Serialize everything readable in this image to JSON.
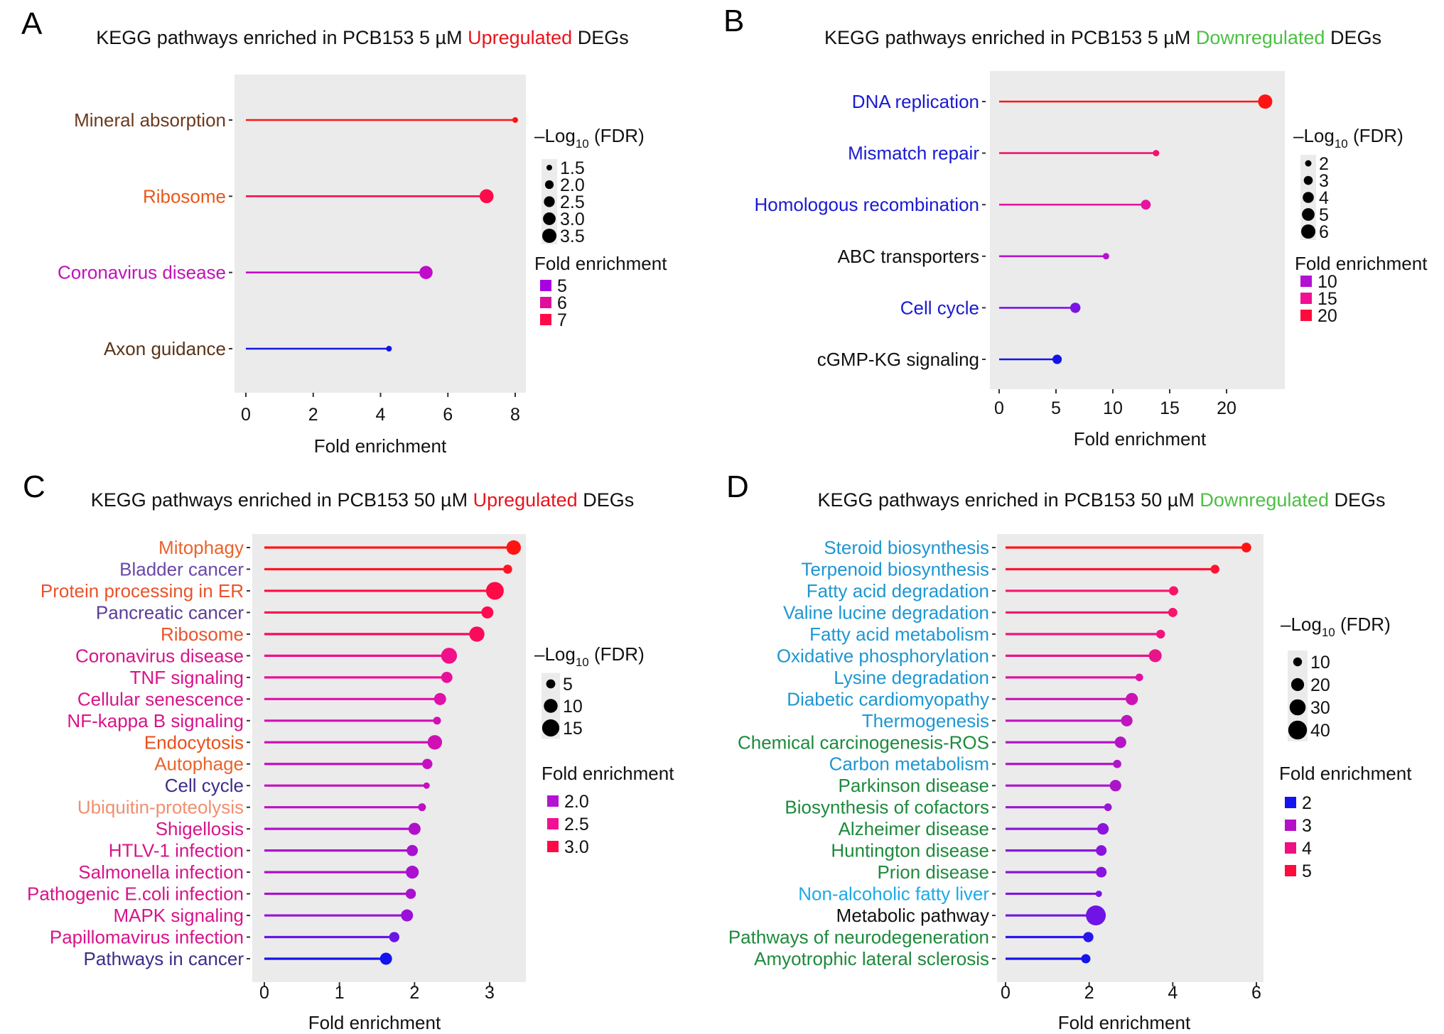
{
  "figure": {
    "panels": [
      "A",
      "B",
      "C",
      "D"
    ]
  },
  "chart_data": [
    {
      "panel": "A",
      "type": "lollipop",
      "title": {
        "prefix": "KEGG pathways enriched in PCB153 5 µM ",
        "highlight": "Upregulated",
        "highlight_color": "#e8141c",
        "suffix": " DEGs"
      },
      "xlabel": "Fold enrichment",
      "xlim": [
        0,
        8.4
      ],
      "xticks": [
        0,
        2,
        4,
        6,
        8
      ],
      "grid": false,
      "background": "#ebebeb",
      "size_legend": {
        "title": "–Log",
        "title_sub": "10",
        "title_end": " (FDR)",
        "values": [
          1.5,
          2.0,
          2.5,
          3.0,
          3.5
        ],
        "labels": [
          "1.5",
          "2.0",
          "2.5",
          "3.0",
          "3.5"
        ]
      },
      "color_legend": {
        "title": "Fold enrichment",
        "labels": [
          "5",
          "6",
          "7"
        ],
        "colors": [
          "#a800e0",
          "#e0109a",
          "#ff0a4a"
        ]
      },
      "legend_placement": "right",
      "categories": [
        "Mineral absorption",
        "Ribosome",
        "Coronavirus disease",
        "Axon guidance"
      ],
      "label_colors": [
        "#6b3a1e",
        "#e8581c",
        "#c212b8",
        "#5a3418"
      ],
      "values": [
        8.0,
        7.15,
        5.35,
        4.25
      ],
      "neg_log10_fdr": [
        1.5,
        3.4,
        3.2,
        1.3
      ],
      "point_colors": [
        "#ff1414",
        "#ff0a4a",
        "#c20bc8",
        "#1414e6"
      ]
    },
    {
      "panel": "B",
      "type": "lollipop",
      "title": {
        "prefix": "KEGG pathways enriched in PCB153 5 µM ",
        "highlight": "Downregulated",
        "highlight_color": "#4cbf44",
        "suffix": " DEGs"
      },
      "xlabel": "Fold enrichment",
      "xlim": [
        0,
        24.5
      ],
      "xticks": [
        0,
        5,
        10,
        15,
        20
      ],
      "grid": false,
      "background": "#ebebeb",
      "size_legend": {
        "title": "–Log",
        "title_sub": "10",
        "title_end": " (FDR)",
        "values": [
          2,
          3,
          4,
          5,
          6
        ],
        "labels": [
          "2",
          "3",
          "4",
          "5",
          "6"
        ]
      },
      "color_legend": {
        "title": "Fold enrichment",
        "labels": [
          "10",
          "15",
          "20"
        ],
        "colors": [
          "#b410d2",
          "#f01093",
          "#ff0a3c"
        ]
      },
      "legend_placement": "right",
      "categories": [
        "DNA replication",
        "Mismatch repair",
        "Homologous recombination",
        "ABC transporters",
        "Cell cycle",
        "cGMP-KG signaling"
      ],
      "label_colors": [
        "#1a1ad2",
        "#1a1ad2",
        "#1a1ad2",
        "#111111",
        "#1a1ad2",
        "#111111"
      ],
      "values": [
        23.4,
        13.8,
        12.9,
        9.4,
        6.7,
        5.1
      ],
      "neg_log10_fdr": [
        6.2,
        1.6,
        3.4,
        2.0,
        3.6,
        3.2
      ],
      "point_colors": [
        "#ff1414",
        "#f0146e",
        "#e614a0",
        "#b414d2",
        "#7a14e6",
        "#1414e6"
      ]
    },
    {
      "panel": "C",
      "type": "lollipop",
      "title": {
        "prefix": "KEGG pathways enriched in PCB153 50 µM ",
        "highlight": "Upregulated",
        "highlight_color": "#e8141c",
        "suffix": " DEGs"
      },
      "xlabel": "Fold enrichment",
      "xlim": [
        0,
        3.48
      ],
      "xticks": [
        0,
        1,
        2,
        3
      ],
      "grid": false,
      "background": "#ebebeb",
      "size_legend": {
        "title": "–Log",
        "title_sub": "10",
        "title_end": " (FDR)",
        "values": [
          5,
          10,
          15
        ],
        "labels": [
          "5",
          "10",
          "15"
        ]
      },
      "color_legend": {
        "title": "Fold enrichment",
        "labels": [
          "2.0",
          "2.5",
          "3.0"
        ],
        "colors": [
          "#b414d2",
          "#f01093",
          "#ff0a46"
        ]
      },
      "legend_placement": "right",
      "categories": [
        "Mitophagy",
        "Bladder cancer",
        "Protein processing in ER",
        "Pancreatic cancer",
        "Ribosome",
        "Coronavirus disease",
        "TNF signaling",
        "Cellular senescence",
        "NF-kappa B signaling",
        "Endocytosis",
        "Autophage",
        "Cell cycle",
        "Ubiquitin-proteolysis",
        "Shigellosis",
        "HTLV-1 infection",
        "Salmonella infection",
        "Pathogenic E.coli infection",
        "MAPK signaling",
        "Papillomavirus infection",
        "Pathways in cancer"
      ],
      "label_colors": [
        "#e8642c",
        "#6a48a8",
        "#e8542c",
        "#5a3e96",
        "#e8542c",
        "#d8148a",
        "#d8148a",
        "#d8148a",
        "#d8148a",
        "#e8501c",
        "#e8642c",
        "#3e2c88",
        "#f09070",
        "#d8148a",
        "#d8148a",
        "#d8148a",
        "#d8148a",
        "#d8148a",
        "#d8148a",
        "#3e2c88"
      ],
      "values": [
        3.32,
        3.24,
        3.07,
        2.97,
        2.83,
        2.46,
        2.43,
        2.34,
        2.3,
        2.27,
        2.17,
        2.16,
        2.1,
        2.0,
        1.97,
        1.97,
        1.95,
        1.9,
        1.73,
        1.62
      ],
      "neg_log10_fdr": [
        11,
        5,
        16,
        8,
        12,
        13,
        7,
        8,
        4,
        11,
        6,
        3,
        4,
        8,
        7,
        9,
        6,
        8,
        6,
        8
      ],
      "point_colors": [
        "#ff1414",
        "#ff1428",
        "#ff0a46",
        "#ff0a50",
        "#fa0a5a",
        "#f0108a",
        "#e8109a",
        "#e010a8",
        "#d010b4",
        "#d010b4",
        "#c410c0",
        "#c410c0",
        "#bc10c4",
        "#b010cc",
        "#aa10d0",
        "#aa10d0",
        "#aa10d0",
        "#9a10d8",
        "#6a14e6",
        "#1414f0"
      ]
    },
    {
      "panel": "D",
      "type": "lollipop",
      "title": {
        "prefix": "KEGG pathways enriched in PCB153 50 µM ",
        "highlight": "Downregulated",
        "highlight_color": "#4cbf44",
        "suffix": " DEGs"
      },
      "xlabel": "Fold enrichment",
      "xlim": [
        0,
        6.1
      ],
      "xticks": [
        0,
        2,
        4,
        6
      ],
      "grid": false,
      "background": "#ebebeb",
      "size_legend": {
        "title": "–Log",
        "title_sub": "10",
        "title_end": " (FDR)",
        "values": [
          10,
          20,
          30,
          40
        ],
        "labels": [
          "10",
          "20",
          "30",
          "40"
        ]
      },
      "color_legend": {
        "title": "Fold enrichment",
        "labels": [
          "2",
          "3",
          "4",
          "5"
        ],
        "colors": [
          "#1414f0",
          "#b410c8",
          "#f01080",
          "#ff0a3c"
        ]
      },
      "legend_placement": "right",
      "categories": [
        "Steroid biosynthesis",
        "Terpenoid biosynthesis",
        "Fatty acid degradation",
        "Valine lucine degradation",
        "Fatty acid metabolism",
        "Oxidative phosphorylation",
        "Lysine degradation",
        "Diabetic cardiomyopathy",
        "Thermogenesis",
        "Chemical carcinogenesis-ROS",
        "Carbon metabolism",
        "Parkinson disease",
        "Biosynthesis of cofactors",
        "Alzheimer disease",
        "Huntington disease",
        "Prion disease",
        "Non-alcoholic fatty liver",
        "Metabolic pathway",
        "Pathways of neurodegeneration",
        "Amyotrophic lateral sclerosis"
      ],
      "label_colors": [
        "#1e96d2",
        "#1e96d2",
        "#1e96d2",
        "#1e96d2",
        "#1e96d2",
        "#1e96d2",
        "#1e96d2",
        "#1e96d2",
        "#1e96d2",
        "#1e8a3c",
        "#1e96d2",
        "#1e8a3c",
        "#1e8a3c",
        "#1e8a3c",
        "#1e8a3c",
        "#1e8a3c",
        "#1eaae6",
        "#111111",
        "#1e8a3c",
        "#1e8a3c"
      ],
      "values": [
        5.76,
        5.01,
        4.02,
        4.0,
        3.71,
        3.58,
        3.2,
        3.02,
        2.9,
        2.75,
        2.67,
        2.63,
        2.45,
        2.33,
        2.29,
        2.29,
        2.23,
        2.16,
        1.98,
        1.92
      ],
      "neg_log10_fdr": [
        12,
        10,
        11,
        11,
        10,
        20,
        8,
        18,
        16,
        16,
        9,
        16,
        8,
        16,
        14,
        14,
        6,
        45,
        13,
        11
      ],
      "point_colors": [
        "#ff1414",
        "#ff1432",
        "#f8146a",
        "#f8146e",
        "#f0147c",
        "#ea1488",
        "#de14a0",
        "#cc14b4",
        "#c014be",
        "#b414c6",
        "#b014ca",
        "#ac14cc",
        "#9a14d4",
        "#8c14dc",
        "#8814de",
        "#8814de",
        "#8014e0",
        "#7014e6",
        "#2814ee",
        "#1414f0"
      ]
    }
  ]
}
